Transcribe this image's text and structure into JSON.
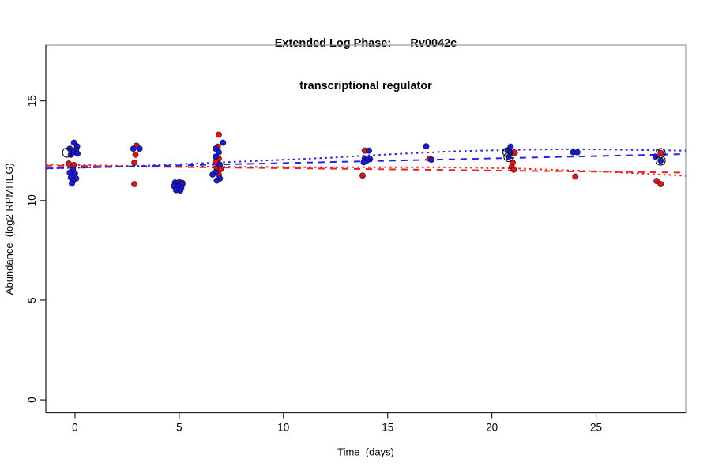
{
  "window": {
    "background": "#ffffff"
  },
  "title": {
    "line1": "Extended Log Phase:      Rv0042c",
    "line2": "transcriptional regulator"
  },
  "chart_data": {
    "type": "scatter",
    "title": "Extended Log Phase: Rv0042c — transcriptional regulator",
    "xlabel": "Time  (days)",
    "ylabel": "Abundance  (log2 RPMHEG)",
    "xlim": [
      -1.4,
      29.3
    ],
    "ylim": [
      -0.65,
      17.8
    ],
    "xticks": [
      0,
      5,
      10,
      15,
      20,
      25
    ],
    "yticks": [
      0,
      5,
      10,
      15
    ],
    "grid": false,
    "legend": "none",
    "colors": {
      "red_point": "#e41212",
      "blue_point": "#1a1ada",
      "point_edge": "rgba(0,0,0,0.6)",
      "red_line": "#f02020",
      "blue_line": "#2222ee",
      "ring": "#111111",
      "frame": "#999999",
      "axis": "#222222",
      "text": "#000000"
    },
    "series": [
      {
        "name": "red-dashed-trend",
        "type": "line",
        "style": "dashed",
        "color": "#f02020",
        "points": [
          [
            -1.4,
            11.75
          ],
          [
            29.3,
            11.4
          ]
        ]
      },
      {
        "name": "red-dotted-trend",
        "type": "line",
        "style": "dotted",
        "color": "#f02020",
        "points": [
          [
            -1.4,
            11.81
          ],
          [
            4.0,
            11.71
          ],
          [
            11.6,
            11.67
          ],
          [
            17.2,
            11.67
          ],
          [
            21.0,
            11.61
          ],
          [
            25.2,
            11.46
          ],
          [
            29.3,
            11.24
          ]
        ]
      },
      {
        "name": "blue-dashed-trend",
        "type": "line",
        "style": "dashed",
        "color": "#2222ee",
        "points": [
          [
            -1.4,
            11.61
          ],
          [
            29.3,
            12.33
          ]
        ]
      },
      {
        "name": "blue-dotted-trend",
        "type": "line",
        "style": "dotted",
        "color": "#2222ee",
        "points": [
          [
            -1.4,
            11.6
          ],
          [
            2.5,
            11.71
          ],
          [
            7.0,
            11.91
          ],
          [
            12.3,
            12.15
          ],
          [
            14.2,
            12.27
          ],
          [
            18.2,
            12.47
          ],
          [
            21.0,
            12.54
          ],
          [
            24.0,
            12.58
          ],
          [
            29.3,
            12.5
          ]
        ]
      },
      {
        "name": "red-replicates",
        "type": "points",
        "color": "#e41212",
        "points": [
          [
            -0.3,
            11.85
          ],
          [
            -0.05,
            11.78
          ],
          [
            2.95,
            12.75
          ],
          [
            2.9,
            12.3
          ],
          [
            2.85,
            11.9
          ],
          [
            2.85,
            10.82
          ],
          [
            5.15,
            10.88
          ],
          [
            6.9,
            13.3
          ],
          [
            6.85,
            12.7
          ],
          [
            6.9,
            12.1
          ],
          [
            6.75,
            11.95
          ],
          [
            6.8,
            11.62
          ],
          [
            7.0,
            11.58
          ],
          [
            6.9,
            11.3
          ],
          [
            13.9,
            12.5
          ],
          [
            13.8,
            11.25
          ],
          [
            17.0,
            12.1
          ],
          [
            21.1,
            12.4
          ],
          [
            21.0,
            11.9
          ],
          [
            20.95,
            11.68
          ],
          [
            21.05,
            11.55
          ],
          [
            24.0,
            11.2
          ],
          [
            28.1,
            12.38
          ],
          [
            27.9,
            10.98
          ],
          [
            28.1,
            10.82
          ]
        ]
      },
      {
        "name": "blue-replicates",
        "type": "points",
        "color": "#1a1ada",
        "points": [
          [
            -0.05,
            12.9
          ],
          [
            0.1,
            12.72
          ],
          [
            -0.25,
            12.6
          ],
          [
            0.05,
            12.55
          ],
          [
            -0.1,
            12.42
          ],
          [
            0.12,
            12.35
          ],
          [
            -0.2,
            12.3
          ],
          [
            -0.1,
            11.55
          ],
          [
            -0.25,
            11.4
          ],
          [
            0.0,
            11.35
          ],
          [
            -0.2,
            11.15
          ],
          [
            0.05,
            11.1
          ],
          [
            -0.1,
            10.98
          ],
          [
            -0.15,
            10.85
          ],
          [
            2.8,
            12.6
          ],
          [
            3.1,
            12.6
          ],
          [
            4.8,
            10.9
          ],
          [
            5.0,
            10.92
          ],
          [
            5.15,
            10.82
          ],
          [
            4.75,
            10.72
          ],
          [
            4.95,
            10.7
          ],
          [
            5.1,
            10.65
          ],
          [
            4.85,
            10.52
          ],
          [
            5.05,
            10.5
          ],
          [
            7.1,
            12.9
          ],
          [
            6.75,
            12.6
          ],
          [
            6.9,
            12.42
          ],
          [
            6.75,
            12.2
          ],
          [
            6.95,
            11.8
          ],
          [
            6.75,
            11.42
          ],
          [
            6.6,
            11.3
          ],
          [
            6.95,
            11.1
          ],
          [
            6.8,
            11.0
          ],
          [
            14.1,
            12.5
          ],
          [
            13.9,
            12.1
          ],
          [
            14.15,
            12.08
          ],
          [
            14.0,
            12.0
          ],
          [
            13.85,
            11.92
          ],
          [
            16.85,
            12.72
          ],
          [
            17.1,
            12.05
          ],
          [
            20.9,
            12.7
          ],
          [
            20.75,
            12.5
          ],
          [
            20.9,
            12.4
          ],
          [
            20.8,
            12.18
          ],
          [
            23.9,
            12.42
          ],
          [
            24.1,
            12.42
          ],
          [
            27.85,
            12.2
          ],
          [
            28.1,
            12.0
          ]
        ]
      },
      {
        "name": "outlier-rings",
        "type": "rings",
        "color": "#111111",
        "points": [
          [
            -0.38,
            12.4
          ],
          [
            20.75,
            12.42
          ],
          [
            20.8,
            12.18
          ],
          [
            28.1,
            12.38
          ],
          [
            28.1,
            12.0
          ]
        ]
      }
    ]
  }
}
